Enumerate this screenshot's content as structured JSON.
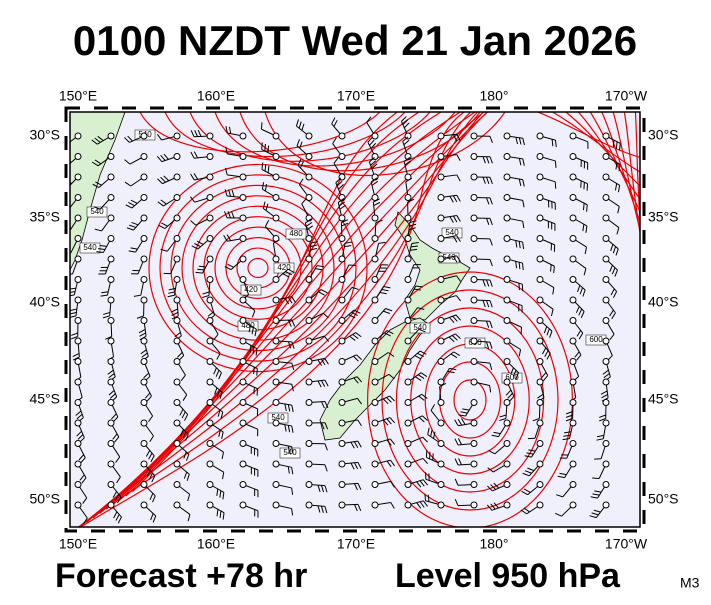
{
  "header": {
    "title": "0100 NZDT Wed 21 Jan 2026"
  },
  "map": {
    "longitude_labels": [
      "150°E",
      "160°E",
      "170°E",
      "180°",
      "170°W"
    ],
    "latitude_labels": [
      "30°S",
      "35°S",
      "40°S",
      "45°S",
      "50°S"
    ],
    "contour_labels": [
      "540",
      "540",
      "540",
      "480",
      "420",
      "420",
      "480",
      "540",
      "540",
      "540",
      "540",
      "540",
      "600",
      "600",
      "600"
    ]
  },
  "footer": {
    "forecast": "Forecast +78 hr",
    "level": "Level 950 hPa",
    "code": "M3"
  }
}
